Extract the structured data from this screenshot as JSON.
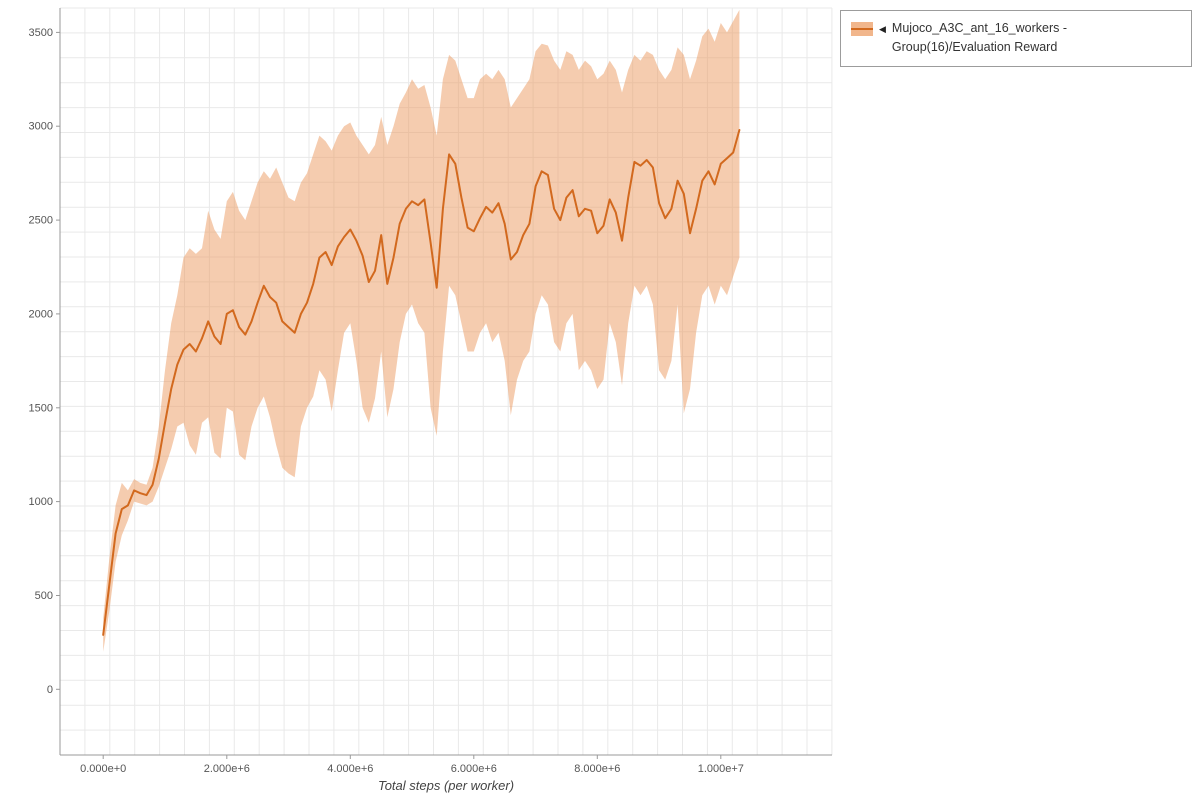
{
  "page": {
    "background": "#ffffff"
  },
  "legend": {
    "collapse_icon": "◀",
    "series_label": "Mujoco_A3C_ant_16_workers - Group(16)/Evaluation Reward"
  },
  "chart_data": {
    "type": "line",
    "title": "",
    "xlabel": "Total steps (per worker)",
    "ylabel": "",
    "legend_position": "outside-top-right",
    "grid": true,
    "x_axis_unit_steps": 1000000,
    "xlim": [
      -0.7,
      11.8
    ],
    "ylim": [
      -350,
      3630
    ],
    "xticks": [
      {
        "value": 0,
        "label": "0.000e+0"
      },
      {
        "value": 2,
        "label": "2.000e+6"
      },
      {
        "value": 4,
        "label": "4.000e+6"
      },
      {
        "value": 6,
        "label": "6.000e+6"
      },
      {
        "value": 8,
        "label": "8.000e+6"
      },
      {
        "value": 10,
        "label": "1.000e+7"
      }
    ],
    "yticks": [
      {
        "value": 0,
        "label": "0"
      },
      {
        "value": 500,
        "label": "500"
      },
      {
        "value": 1000,
        "label": "1000"
      },
      {
        "value": 1500,
        "label": "1500"
      },
      {
        "value": 2000,
        "label": "2000"
      },
      {
        "value": 2500,
        "label": "2500"
      },
      {
        "value": 3000,
        "label": "3000"
      },
      {
        "value": 3500,
        "label": "3500"
      }
    ],
    "colors": {
      "line": "#d2691e",
      "band": "#eb9a5f"
    },
    "series": [
      {
        "name": "Mujoco_A3C_ant_16_workers - Group(16)/Evaluation Reward",
        "x_start": 0,
        "x_step": 0.1,
        "x_unit": "millions of steps",
        "mean": [
          290,
          560,
          830,
          960,
          980,
          1060,
          1045,
          1035,
          1090,
          1230,
          1420,
          1600,
          1730,
          1810,
          1840,
          1800,
          1870,
          1960,
          1880,
          1840,
          2000,
          2020,
          1930,
          1890,
          1960,
          2060,
          2150,
          2090,
          2060,
          1960,
          1930,
          1900,
          2000,
          2060,
          2160,
          2300,
          2330,
          2260,
          2360,
          2410,
          2450,
          2390,
          2310,
          2170,
          2230,
          2420,
          2160,
          2300,
          2480,
          2560,
          2600,
          2580,
          2610,
          2380,
          2140,
          2560,
          2850,
          2800,
          2620,
          2460,
          2440,
          2510,
          2570,
          2540,
          2590,
          2480,
          2290,
          2330,
          2420,
          2480,
          2680,
          2760,
          2740,
          2560,
          2500,
          2620,
          2660,
          2520,
          2560,
          2550,
          2430,
          2470,
          2610,
          2540,
          2390,
          2620,
          2810,
          2790,
          2820,
          2780,
          2590,
          2510,
          2560,
          2710,
          2640,
          2430,
          2560,
          2710,
          2760,
          2690,
          2800,
          2830,
          2860,
          2980
        ],
        "band_lower": [
          200,
          420,
          680,
          820,
          900,
          1000,
          990,
          980,
          1000,
          1080,
          1180,
          1280,
          1400,
          1420,
          1300,
          1250,
          1420,
          1450,
          1260,
          1230,
          1500,
          1480,
          1250,
          1220,
          1400,
          1500,
          1560,
          1450,
          1300,
          1180,
          1150,
          1130,
          1400,
          1500,
          1560,
          1700,
          1650,
          1480,
          1700,
          1900,
          1950,
          1750,
          1500,
          1420,
          1550,
          1800,
          1450,
          1600,
          1850,
          2000,
          2050,
          1950,
          1900,
          1500,
          1350,
          1800,
          2150,
          2100,
          1950,
          1800,
          1800,
          1900,
          1950,
          1850,
          1900,
          1750,
          1460,
          1650,
          1750,
          1800,
          2000,
          2100,
          2050,
          1850,
          1800,
          1950,
          2000,
          1700,
          1750,
          1700,
          1600,
          1650,
          1950,
          1850,
          1620,
          1950,
          2150,
          2100,
          2150,
          2050,
          1700,
          1650,
          1750,
          2050,
          1470,
          1600,
          1900,
          2100,
          2150,
          2050,
          2150,
          2100,
          2200,
          2300
        ],
        "band_upper": [
          380,
          700,
          980,
          1100,
          1060,
          1120,
          1100,
          1090,
          1180,
          1400,
          1700,
          1950,
          2100,
          2300,
          2350,
          2320,
          2350,
          2550,
          2450,
          2400,
          2600,
          2650,
          2550,
          2500,
          2600,
          2700,
          2760,
          2720,
          2780,
          2700,
          2620,
          2600,
          2700,
          2750,
          2850,
          2950,
          2920,
          2870,
          2950,
          3000,
          3020,
          2950,
          2900,
          2850,
          2900,
          3050,
          2900,
          3000,
          3120,
          3180,
          3250,
          3200,
          3220,
          3100,
          2950,
          3250,
          3380,
          3350,
          3250,
          3150,
          3150,
          3250,
          3280,
          3250,
          3300,
          3250,
          3100,
          3150,
          3200,
          3250,
          3400,
          3440,
          3430,
          3350,
          3300,
          3400,
          3380,
          3300,
          3350,
          3320,
          3250,
          3280,
          3350,
          3300,
          3180,
          3300,
          3380,
          3350,
          3400,
          3380,
          3300,
          3250,
          3300,
          3420,
          3380,
          3250,
          3350,
          3480,
          3520,
          3450,
          3550,
          3500,
          3560,
          3620
        ]
      }
    ]
  }
}
